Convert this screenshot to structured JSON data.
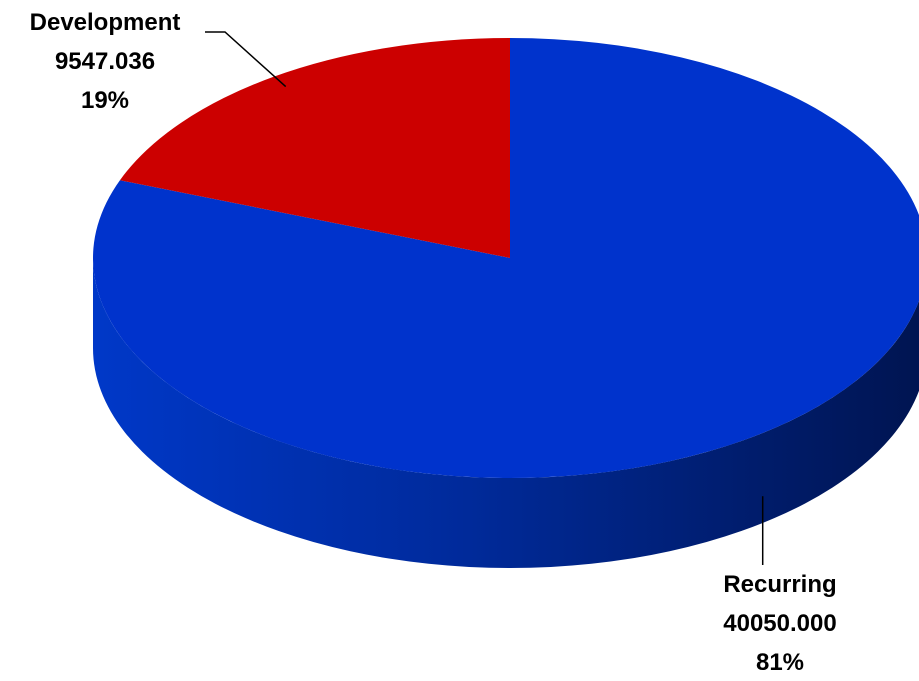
{
  "chart_data": {
    "type": "pie",
    "title": "",
    "slices": [
      {
        "name": "Recurring",
        "value": 40050.0,
        "value_label": "40050.000",
        "percent_label": "81%",
        "color": "#0033CC",
        "side_color": "#001F7A"
      },
      {
        "name": "Development",
        "value": 9547.036,
        "value_label": "9547.036",
        "percent_label": "19%",
        "color": "#CC0000",
        "side_color": "#7A0000"
      }
    ],
    "style": "3d",
    "start_angle_deg": 0,
    "direction": "clockwise",
    "data_labels": [
      "name",
      "value",
      "percent"
    ],
    "leader_lines": true
  }
}
